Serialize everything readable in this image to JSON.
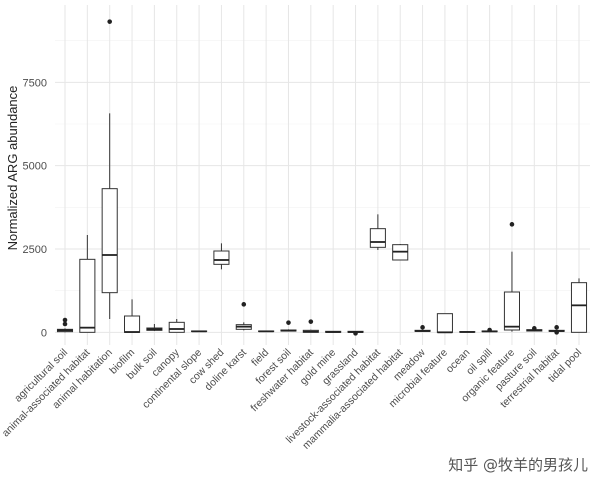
{
  "chart_data": {
    "type": "boxplot",
    "title": "",
    "xlabel": "",
    "ylabel": "Normalized ARG abundance",
    "ylim": [
      -380,
      9820
    ],
    "yticks": [
      0,
      2500,
      5000,
      7500
    ],
    "grid": true,
    "legend": "none",
    "categories": [
      "agricultural soil",
      "animal-associated habitat",
      "animal habitation",
      "biofilm",
      "bulk soil",
      "canopy",
      "continental slope",
      "cow shed",
      "doline karst",
      "field",
      "forest soil",
      "freshwater habitat",
      "gold mine",
      "grassland",
      "livestock-associated habitat",
      "mammalia-associated habitat",
      "meadow",
      "microbial feature",
      "ocean",
      "oil spill",
      "organic feature",
      "pasture soil",
      "terrestrial habitat",
      "tidal pool"
    ],
    "boxes": [
      {
        "low": 0,
        "q1": 20,
        "median": 60,
        "q3": 90,
        "high": 120,
        "outliers": [
          250,
          370
        ]
      },
      {
        "low": 0,
        "q1": 0,
        "median": 140,
        "q3": 2190,
        "high": 2920,
        "outliers": []
      },
      {
        "low": 400,
        "q1": 1190,
        "median": 2320,
        "q3": 4310,
        "high": 6570,
        "outliers": [
          9320
        ]
      },
      {
        "low": 0,
        "q1": 0,
        "median": 10,
        "q3": 490,
        "high": 990,
        "outliers": []
      },
      {
        "low": 40,
        "q1": 60,
        "median": 90,
        "q3": 130,
        "high": 250,
        "outliers": []
      },
      {
        "low": 0,
        "q1": 0,
        "median": 100,
        "q3": 300,
        "high": 400,
        "outliers": []
      },
      {
        "low": 20,
        "q1": 25,
        "median": 30,
        "q3": 40,
        "high": 45,
        "outliers": []
      },
      {
        "low": 1890,
        "q1": 2040,
        "median": 2170,
        "q3": 2440,
        "high": 2670,
        "outliers": []
      },
      {
        "low": 60,
        "q1": 90,
        "median": 170,
        "q3": 230,
        "high": 300,
        "outliers": [
          840
        ]
      },
      {
        "low": 20,
        "q1": 25,
        "median": 30,
        "q3": 40,
        "high": 45,
        "outliers": []
      },
      {
        "low": 30,
        "q1": 40,
        "median": 50,
        "q3": 70,
        "high": 90,
        "outliers": [
          290
        ]
      },
      {
        "low": 0,
        "q1": 0,
        "median": 20,
        "q3": 60,
        "high": 80,
        "outliers": [
          320
        ]
      },
      {
        "low": 0,
        "q1": 0,
        "median": 10,
        "q3": 30,
        "high": 40,
        "outliers": []
      },
      {
        "low": -10,
        "q1": 0,
        "median": 10,
        "q3": 30,
        "high": 40,
        "outliers": [
          -30
        ]
      },
      {
        "low": 2470,
        "q1": 2550,
        "median": 2710,
        "q3": 3110,
        "high": 3540,
        "outliers": []
      },
      {
        "low": 2170,
        "q1": 2170,
        "median": 2420,
        "q3": 2630,
        "high": 2650,
        "outliers": []
      },
      {
        "low": 20,
        "q1": 30,
        "median": 40,
        "q3": 60,
        "high": 80,
        "outliers": [
          150
        ]
      },
      {
        "low": 0,
        "q1": 0,
        "median": 0,
        "q3": 560,
        "high": 560,
        "outliers": []
      },
      {
        "low": 0,
        "q1": 5,
        "median": 10,
        "q3": 20,
        "high": 30,
        "outliers": []
      },
      {
        "low": 10,
        "q1": 20,
        "median": 30,
        "q3": 40,
        "high": 50,
        "outliers": [
          70
        ]
      },
      {
        "low": 20,
        "q1": 70,
        "median": 170,
        "q3": 1210,
        "high": 2420,
        "outliers": [
          3240
        ]
      },
      {
        "low": 30,
        "q1": 40,
        "median": 60,
        "q3": 80,
        "high": 100,
        "outliers": [
          120
        ]
      },
      {
        "low": 10,
        "q1": 30,
        "median": 40,
        "q3": 60,
        "high": 80,
        "outliers": [
          0,
          150
        ]
      },
      {
        "low": 0,
        "q1": 0,
        "median": 810,
        "q3": 1490,
        "high": 1620,
        "outliers": []
      }
    ]
  },
  "watermark": "知乎 @牧羊的男孩儿"
}
